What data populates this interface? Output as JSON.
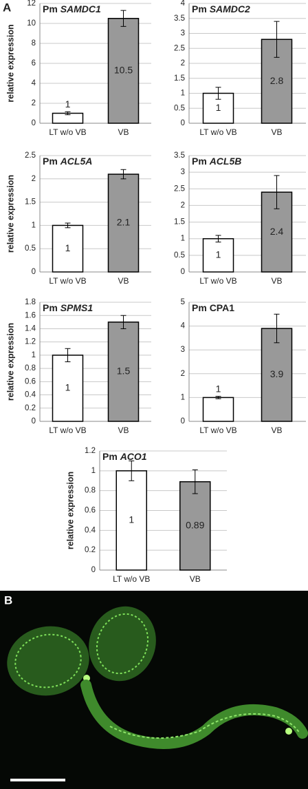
{
  "panel_labels": [
    "A",
    "B"
  ],
  "chart_data": [
    {
      "type": "bar",
      "title_parts": [
        {
          "text": "Pm",
          "italic": false
        },
        {
          "text": "SAMDC1",
          "italic": true
        }
      ],
      "ylabel": "relative expression",
      "categories": [
        "LT w/o VB",
        "VB"
      ],
      "values": [
        1,
        10.5
      ],
      "errors": [
        0.15,
        0.8
      ],
      "colors": [
        "#ffffff",
        "#999999"
      ],
      "ylim": [
        0,
        12
      ],
      "yticks": [
        0,
        2,
        4,
        6,
        8,
        10,
        12
      ],
      "grid": true
    },
    {
      "type": "bar",
      "title_parts": [
        {
          "text": "Pm",
          "italic": false
        },
        {
          "text": "SAMDC2",
          "italic": true
        }
      ],
      "categories": [
        "LT w/o VB",
        "VB"
      ],
      "values": [
        1,
        2.8
      ],
      "errors": [
        0.2,
        0.6
      ],
      "colors": [
        "#ffffff",
        "#999999"
      ],
      "ylim": [
        0,
        4
      ],
      "yticks": [
        0,
        0.5,
        1,
        1.5,
        2,
        2.5,
        3,
        3.5,
        4
      ],
      "grid": true
    },
    {
      "type": "bar",
      "title_parts": [
        {
          "text": "Pm",
          "italic": false
        },
        {
          "text": "ACL5A",
          "italic": true
        }
      ],
      "ylabel": "relative expression",
      "categories": [
        "LT w/o VB",
        "VB"
      ],
      "values": [
        1,
        2.1
      ],
      "errors": [
        0.05,
        0.1
      ],
      "colors": [
        "#ffffff",
        "#999999"
      ],
      "ylim": [
        0,
        2.5
      ],
      "yticks": [
        0,
        0.5,
        1,
        1.5,
        2,
        2.5
      ],
      "grid": true
    },
    {
      "type": "bar",
      "title_parts": [
        {
          "text": "Pm",
          "italic": false
        },
        {
          "text": "ACL5B",
          "italic": true
        }
      ],
      "categories": [
        "LT w/o VB",
        "VB"
      ],
      "values": [
        1,
        2.4
      ],
      "errors": [
        0.1,
        0.5
      ],
      "colors": [
        "#ffffff",
        "#999999"
      ],
      "ylim": [
        0,
        3.5
      ],
      "yticks": [
        0,
        0.5,
        1,
        1.5,
        2,
        2.5,
        3,
        3.5
      ],
      "grid": true
    },
    {
      "type": "bar",
      "title_parts": [
        {
          "text": "Pm",
          "italic": false
        },
        {
          "text": "SPMS1",
          "italic": true
        }
      ],
      "ylabel": "relative expression",
      "categories": [
        "LT w/o VB",
        "VB"
      ],
      "values": [
        1,
        1.5
      ],
      "errors": [
        0.1,
        0.1
      ],
      "colors": [
        "#ffffff",
        "#999999"
      ],
      "ylim": [
        0,
        1.8
      ],
      "yticks": [
        0,
        0.2,
        0.4,
        0.6,
        0.8,
        1,
        1.2,
        1.4,
        1.6,
        1.8
      ],
      "grid": true
    },
    {
      "type": "bar",
      "title_parts": [
        {
          "text": "Pm",
          "italic": false
        },
        {
          "text": "CPA1",
          "italic": false
        }
      ],
      "categories": [
        "LT w/o VB",
        "VB"
      ],
      "values": [
        1,
        3.9
      ],
      "errors": [
        0.05,
        0.6
      ],
      "colors": [
        "#ffffff",
        "#999999"
      ],
      "ylim": [
        0,
        5
      ],
      "yticks": [
        0,
        1,
        2,
        3,
        4,
        5
      ],
      "grid": true
    },
    {
      "type": "bar",
      "title_parts": [
        {
          "text": "Pm",
          "italic": false
        },
        {
          "text": "ACO1",
          "italic": true
        }
      ],
      "ylabel": "relative expression",
      "categories": [
        "LT w/o VB",
        "VB"
      ],
      "values": [
        1,
        0.89
      ],
      "errors": [
        0.1,
        0.12
      ],
      "colors": [
        "#ffffff",
        "#999999"
      ],
      "ylim": [
        0,
        1.2
      ],
      "yticks": [
        0,
        0.2,
        0.4,
        0.6,
        0.8,
        1,
        1.2
      ],
      "grid": true
    }
  ]
}
